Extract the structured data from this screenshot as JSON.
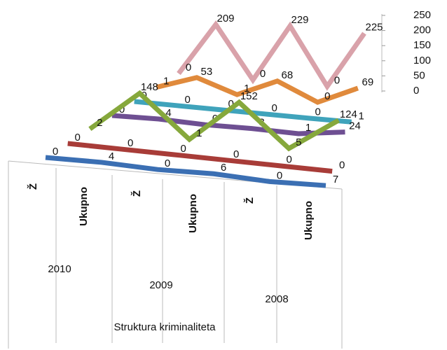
{
  "chart_data": {
    "type": "line3d",
    "x_label": "Struktura kriminaliteta",
    "categories": [
      "Ž",
      "Ukupno",
      "Ž",
      "Ukupno",
      "Ž",
      "Ukupno"
    ],
    "groups": [
      "2010",
      "2009",
      "2008"
    ],
    "series": [
      {
        "color": "#3b6fb3",
        "values": [
          0,
          4,
          0,
          6,
          0,
          7
        ]
      },
      {
        "color": "#a83c38",
        "values": [
          0,
          0,
          0,
          0,
          0,
          0
        ]
      },
      {
        "color": "#86a83c",
        "values": [
          2,
          148,
          1,
          152,
          5,
          124
        ]
      },
      {
        "color": "#6e4f92",
        "values": [
          0,
          4,
          0,
          3,
          1,
          24
        ]
      },
      {
        "color": "#3fa3bb",
        "values": [
          0,
          0,
          0,
          0,
          0,
          1
        ]
      },
      {
        "color": "#e08a3c",
        "values": [
          1,
          53,
          1,
          68,
          0,
          69
        ]
      },
      {
        "color": "#d9a2aa",
        "values": [
          0,
          209,
          0,
          229,
          0,
          225
        ]
      }
    ],
    "ylim": [
      0,
      250
    ],
    "yticks": [
      0,
      50,
      100,
      150,
      200,
      250
    ]
  }
}
